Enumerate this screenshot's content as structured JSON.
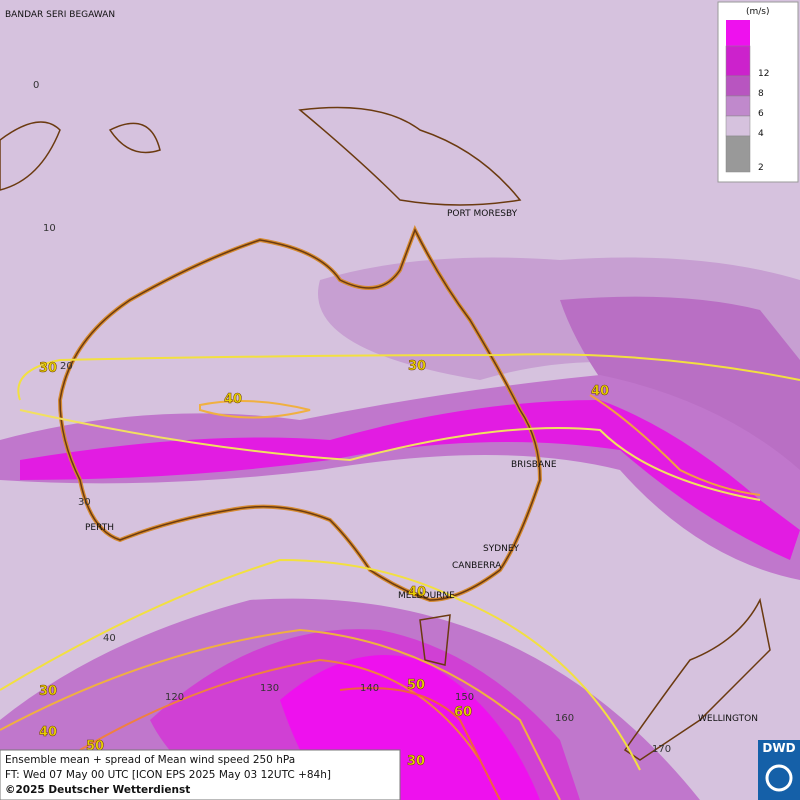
{
  "map": {
    "cities": [
      "BANDAR SERI BEGAWAN",
      "PORT MORESBY",
      "BRISBANE",
      "PERTH",
      "SYDNEY",
      "CANBERRA",
      "MELBOURNE",
      "WELLINGTON"
    ],
    "latitude_labels": [
      "0",
      "10",
      "20",
      "30",
      "40"
    ],
    "longitude_labels": [
      "120",
      "130",
      "140",
      "150",
      "160",
      "170"
    ],
    "contour_labels": [
      30,
      30,
      40,
      40,
      30,
      40,
      50,
      50,
      60,
      30,
      40
    ],
    "legend": {
      "unit": "(m/s)",
      "levels": [
        {
          "label": "12",
          "color": "#cc22cc"
        },
        {
          "label": "8",
          "color": "#b855c0"
        },
        {
          "label": "6",
          "color": "#c089cc"
        },
        {
          "label": "4",
          "color": "#d6c2de"
        },
        {
          "label": "2",
          "color": "#999999"
        }
      ],
      "top_color": "#ee11ee"
    },
    "footer": {
      "line1": "Ensemble mean + spread of Mean wind speed 250 hPa",
      "line2": "FT: Wed 07 May 00 UTC [ICON EPS 2025 May 03 12UTC +84h]",
      "line3": "©2025 Deutscher Wetterdienst"
    },
    "logo": "DWD"
  }
}
